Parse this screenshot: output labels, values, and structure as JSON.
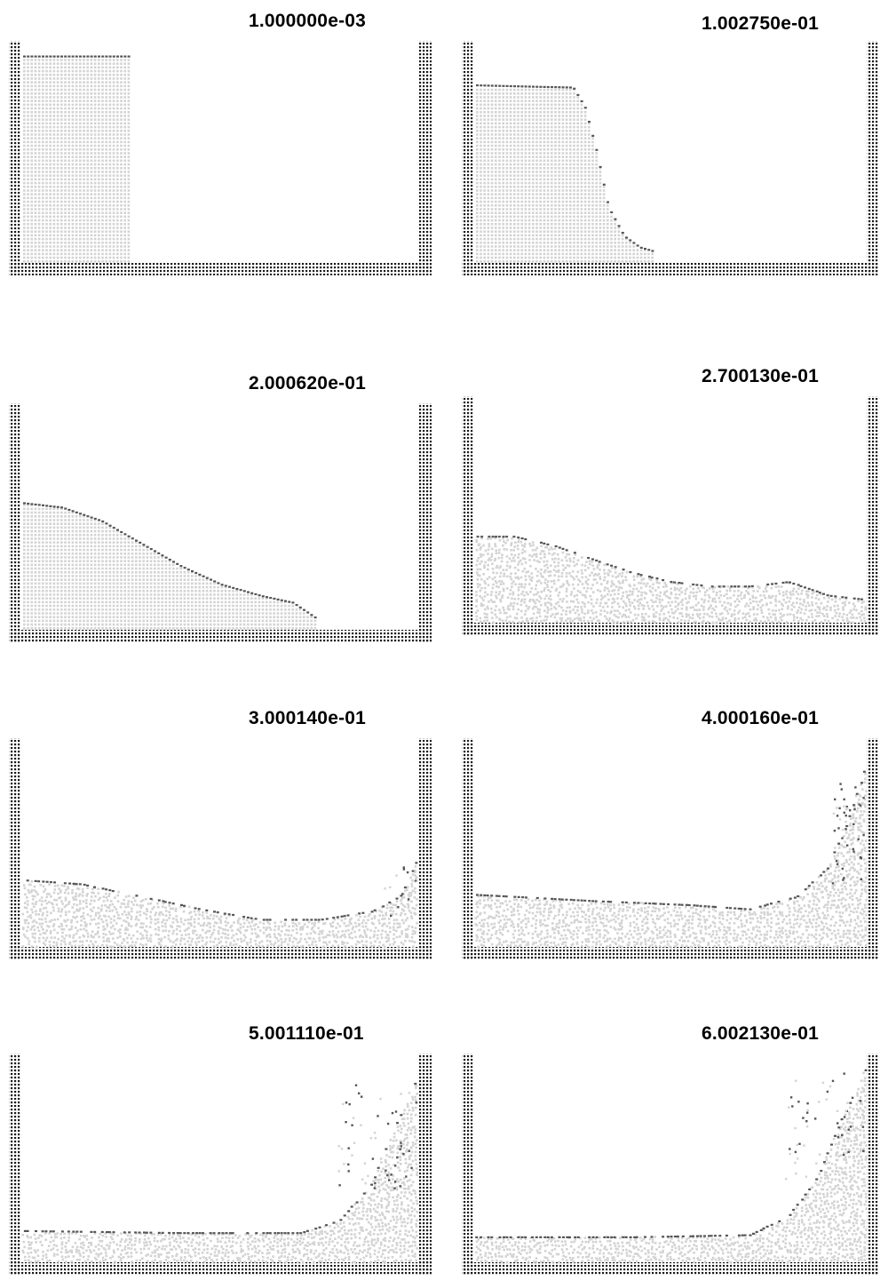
{
  "colors": {
    "wall": "#1a1a1a",
    "fluid": "#d3d3d3",
    "surface": "#555555",
    "background": "#ffffff"
  },
  "frames": [
    {
      "title": "1.000000e-03",
      "time": 0.001
    },
    {
      "title": "1.002750e-01",
      "time": 0.100275
    },
    {
      "title": "2.000620e-01",
      "time": 0.200062
    },
    {
      "title": "2.700130e-01",
      "time": 0.270013
    },
    {
      "title": "3.000140e-01",
      "time": 0.300014
    },
    {
      "title": "4.000160e-01",
      "time": 0.400016
    },
    {
      "title": "5.001110e-01",
      "time": 0.500111
    },
    {
      "title": "6.002130e-01",
      "time": 0.600213
    }
  ]
}
